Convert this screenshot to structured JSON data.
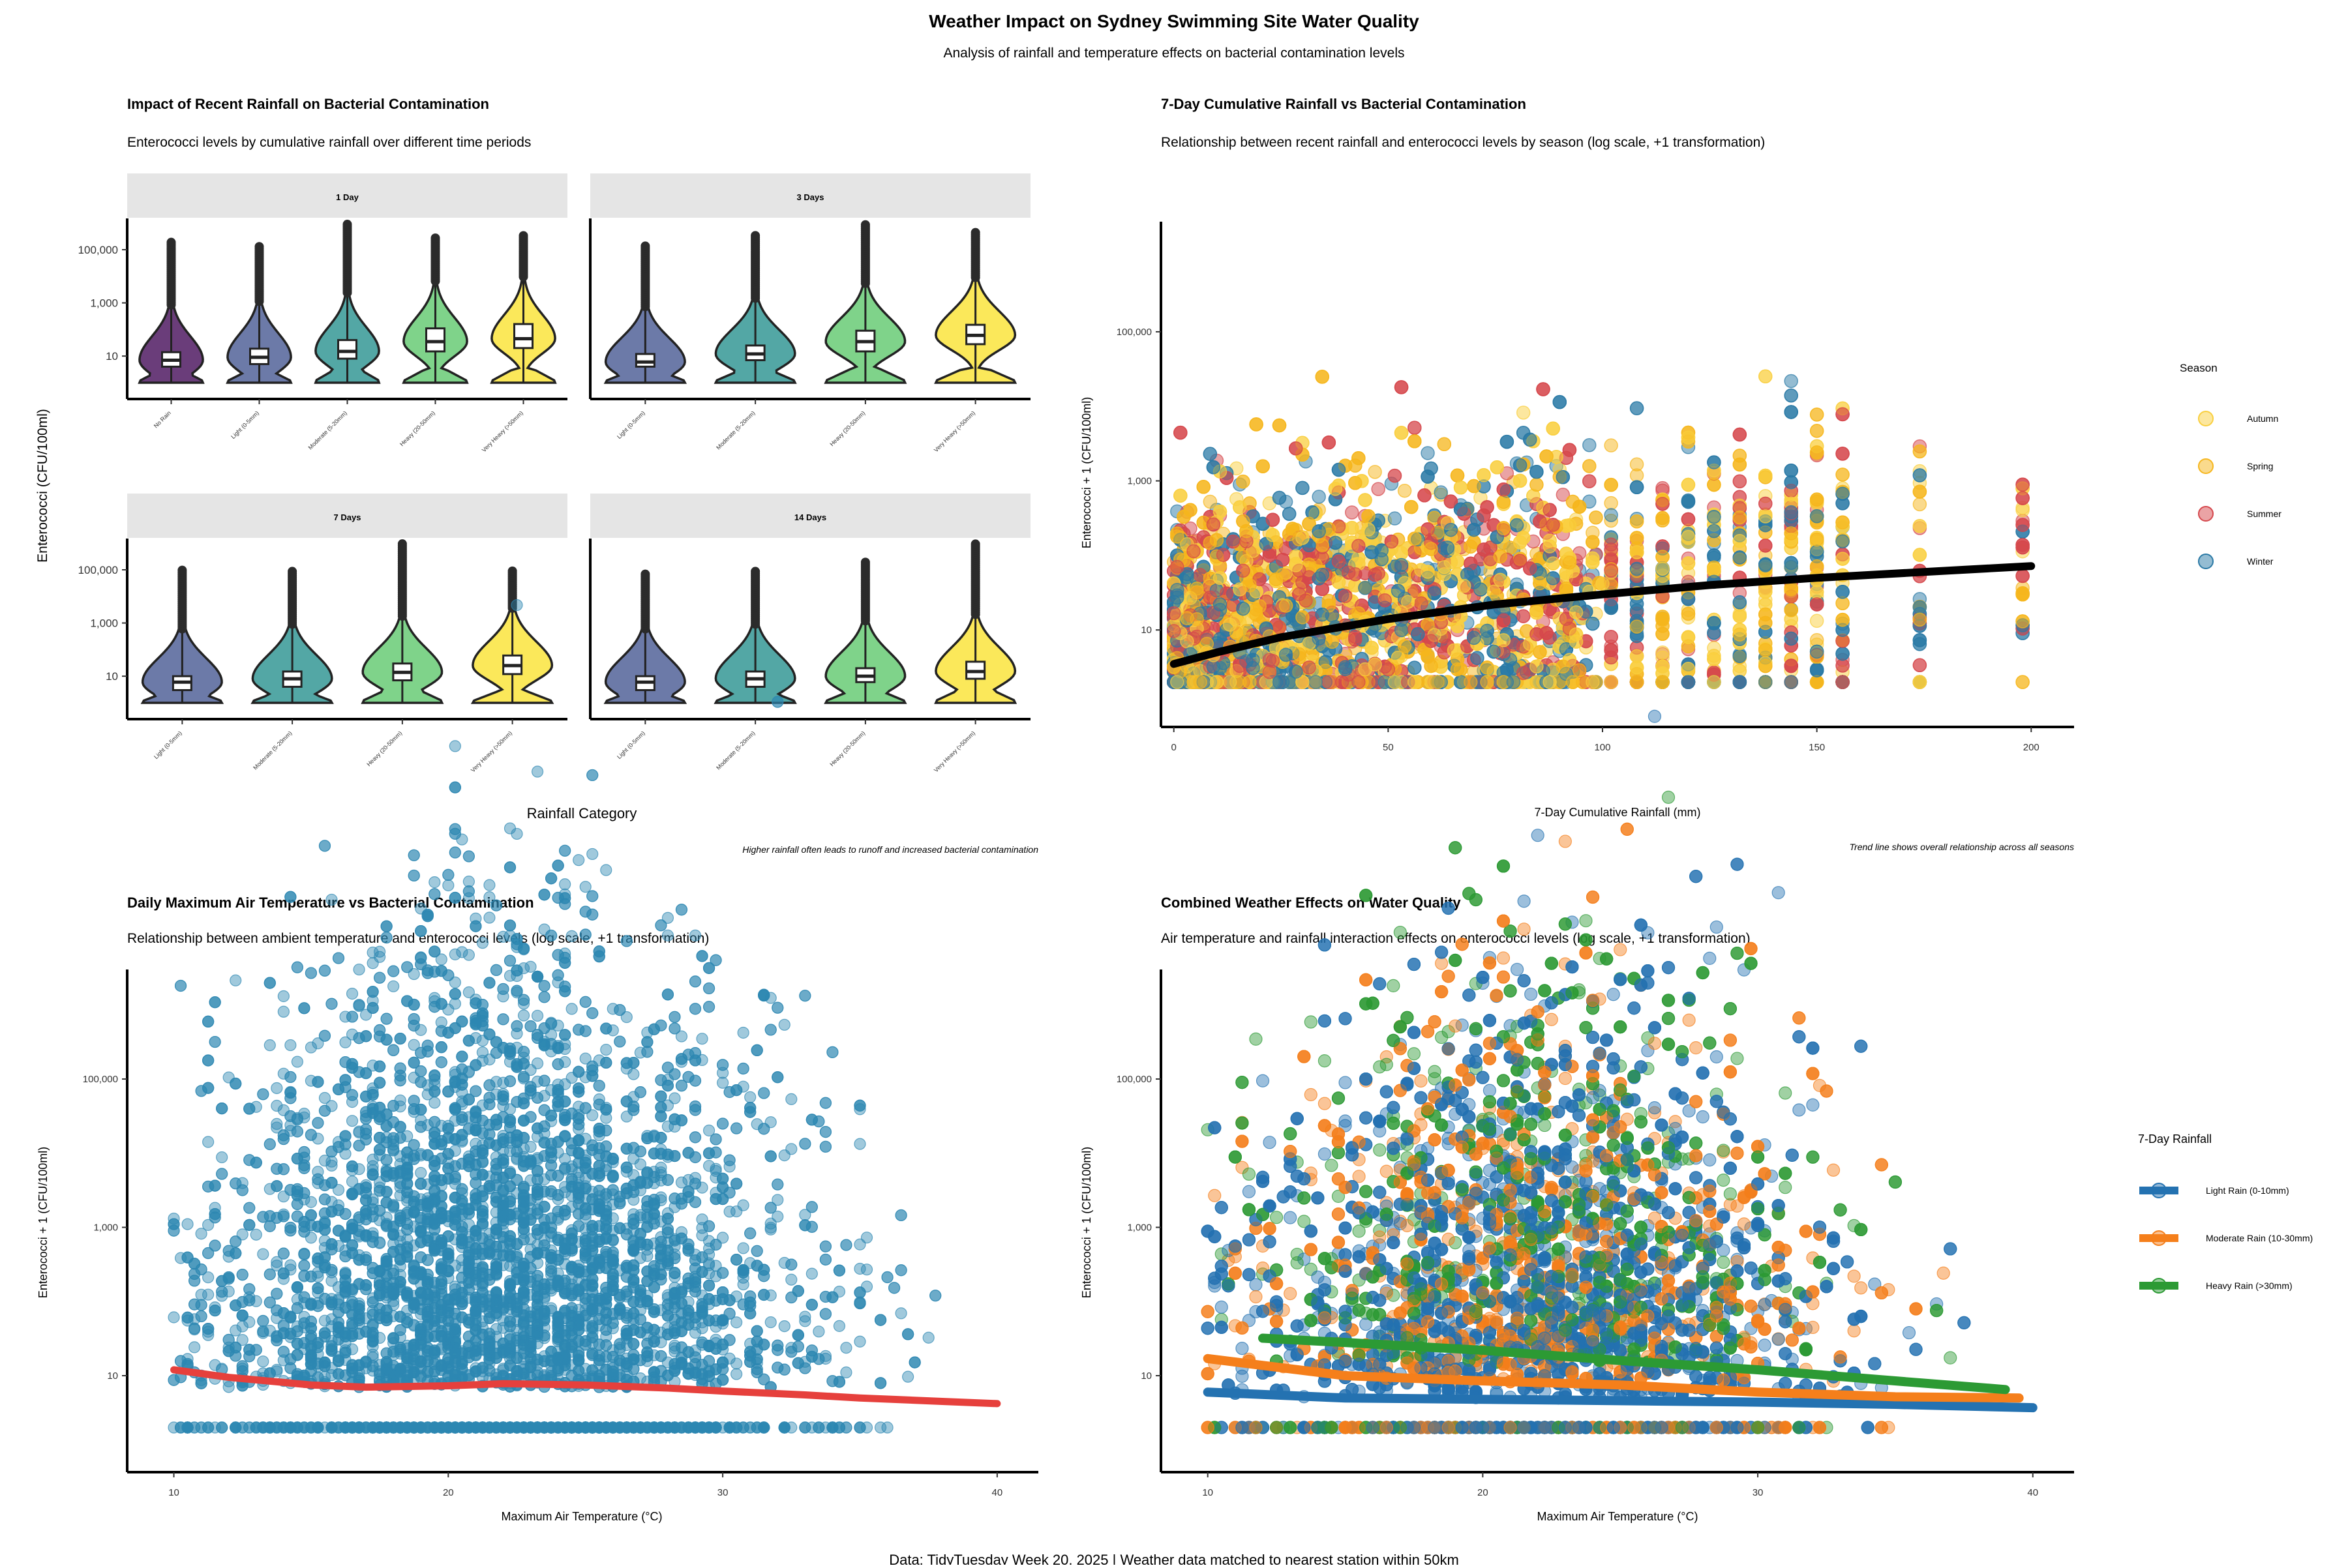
{
  "header": {
    "title": "Weather Impact on Sydney Swimming Site Water Quality",
    "subtitle": "Analysis of rainfall and temperature effects on bacterial contamination levels"
  },
  "caption": "Data: TidyTuesday Week 20, 2025 | Weather data matched to nearest station within 50km",
  "colors": {
    "viridis_5": [
      "#6a3d7a",
      "#6c7aa8",
      "#53a7a5",
      "#7fd38a",
      "#fbe85a"
    ],
    "viridis_4": [
      "#6c7aa8",
      "#53a7a5",
      "#7fd38a",
      "#fbe85a"
    ],
    "autumn": "#f9cf3f",
    "spring": "#f6b61c",
    "summer": "#d5474c",
    "winter": "#2a79a5",
    "temp_points": "#2d88b2",
    "temp_trend": "#e6403c",
    "light_rain": "#2472b1",
    "moderate_rain": "#f57f1b",
    "heavy_rain": "#2c9a34",
    "trend_black": "#000000",
    "strip_bg": "#e5e5e5"
  },
  "chart_data": [
    {
      "type": "violin",
      "title": "Impact of Recent Rainfall on Bacterial Contamination",
      "subtitle": "Enterococci levels by cumulative rainfall over different time periods",
      "xlabel": "Rainfall Category",
      "ylabel": "Enterococci (CFU/100ml)",
      "caption": "Higher rainfall often leads to runoff and increased bacterial contamination",
      "y_scale": "log10",
      "y_ticks": [
        "10",
        "1,000",
        "100,000"
      ],
      "facets": [
        {
          "label": "1 Day",
          "categories": [
            "No Rain",
            "Light (0-5mm)",
            "Moderate (5-20mm)",
            "Heavy (20-50mm)",
            "Very Heavy (>50mm)"
          ],
          "stats": [
            {
              "min": 1,
              "q1": 4,
              "median": 7,
              "q3": 14,
              "max": 200000
            },
            {
              "min": 1,
              "q1": 5,
              "median": 9,
              "q3": 19,
              "max": 150000
            },
            {
              "min": 1,
              "q1": 8,
              "median": 15,
              "q3": 40,
              "max": 1000000
            },
            {
              "min": 1,
              "q1": 15,
              "median": 35,
              "q3": 110,
              "max": 300000
            },
            {
              "min": 1,
              "q1": 20,
              "median": 45,
              "q3": 160,
              "max": 350000
            }
          ]
        },
        {
          "label": "3 Days",
          "categories": [
            "Light (0-5mm)",
            "Moderate (5-20mm)",
            "Heavy (20-50mm)",
            "Very Heavy (>50mm)"
          ],
          "stats": [
            {
              "min": 1,
              "q1": 4,
              "median": 6,
              "q3": 12,
              "max": 150000
            },
            {
              "min": 1,
              "q1": 7,
              "median": 12,
              "q3": 25,
              "max": 350000
            },
            {
              "min": 1,
              "q1": 15,
              "median": 35,
              "q3": 90,
              "max": 1000000
            },
            {
              "min": 1,
              "q1": 28,
              "median": 60,
              "q3": 150,
              "max": 450000
            }
          ]
        },
        {
          "label": "7 Days",
          "categories": [
            "Light (0-5mm)",
            "Moderate (5-20mm)",
            "Heavy (20-50mm)",
            "Very Heavy (>50mm)"
          ],
          "stats": [
            {
              "min": 1,
              "q1": 3,
              "median": 6,
              "q3": 10,
              "max": 100000
            },
            {
              "min": 1,
              "q1": 4,
              "median": 8,
              "q3": 15,
              "max": 90000
            },
            {
              "min": 1,
              "q1": 7,
              "median": 14,
              "q3": 30,
              "max": 1000000
            },
            {
              "min": 1,
              "q1": 12,
              "median": 25,
              "q3": 60,
              "max": 100000
            }
          ]
        },
        {
          "label": "14 Days",
          "categories": [
            "Light (0-5mm)",
            "Moderate (5-20mm)",
            "Heavy (20-50mm)",
            "Very Heavy (>50mm)"
          ],
          "stats": [
            {
              "min": 1,
              "q1": 3,
              "median": 6,
              "q3": 10,
              "max": 70000
            },
            {
              "min": 1,
              "q1": 4,
              "median": 8,
              "q3": 15,
              "max": 100000
            },
            {
              "min": 1,
              "q1": 6,
              "median": 10,
              "q3": 20,
              "max": 200000
            },
            {
              "min": 1,
              "q1": 8,
              "median": 15,
              "q3": 35,
              "max": 1000000
            }
          ]
        }
      ]
    },
    {
      "type": "scatter",
      "title": "7-Day Cumulative Rainfall vs Bacterial Contamination",
      "subtitle": "Relationship between recent rainfall and enterococci levels by season (log scale, +1 transformation)",
      "xlabel": "7-Day Cumulative Rainfall (mm)",
      "ylabel": "Enterococci + 1 (CFU/100ml)",
      "caption": "Trend line shows overall relationship across all seasons",
      "x_scale": "linear",
      "xlim": [
        -3,
        210
      ],
      "x_ticks": [
        0,
        50,
        100,
        150,
        200
      ],
      "y_scale": "log10",
      "ylim": [
        0.5,
        3000000
      ],
      "y_ticks": [
        "10",
        "1,000",
        "100,000"
      ],
      "legend": {
        "title": "Season",
        "position": "right",
        "entries": [
          "Autumn",
          "Spring",
          "Summer",
          "Winter"
        ]
      },
      "trend": {
        "x": [
          0,
          10,
          25,
          50,
          75,
          100,
          125,
          150,
          175,
          200
        ],
        "y": [
          3.5,
          5,
          8,
          14,
          22,
          30,
          40,
          50,
          60,
          72
        ]
      }
    },
    {
      "type": "scatter",
      "title": "Daily Maximum Air Temperature vs Bacterial Contamination",
      "subtitle": "Relationship between ambient temperature and enterococci levels (log scale, +1 transformation)",
      "xlabel": "Maximum Air Temperature (°C)",
      "ylabel": "Enterococci + 1 (CFU/100ml)",
      "x_scale": "linear",
      "xlim": [
        8.3,
        41.5
      ],
      "x_ticks": [
        10,
        20,
        30,
        40
      ],
      "y_scale": "log10",
      "ylim": [
        0.5,
        3000000
      ],
      "y_ticks": [
        "10",
        "1,000",
        "100,000"
      ],
      "trend": {
        "x": [
          10,
          12,
          15,
          17,
          20,
          22,
          25,
          28,
          30,
          33,
          35,
          38,
          40
        ],
        "y": [
          12,
          9.5,
          7.5,
          7,
          7.3,
          7.8,
          7.5,
          6.8,
          6.2,
          5.5,
          5,
          4.5,
          4.2
        ]
      }
    },
    {
      "type": "scatter",
      "title": "Combined Weather Effects on Water Quality",
      "subtitle": "Air temperature and rainfall interaction effects on enterococci levels (log scale, +1 transformation)",
      "xlabel": "Maximum Air Temperature (°C)",
      "ylabel": "Enterococci + 1 (CFU/100ml)",
      "x_scale": "linear",
      "xlim": [
        8.3,
        41.5
      ],
      "x_ticks": [
        10,
        20,
        30,
        40
      ],
      "y_scale": "log10",
      "ylim": [
        0.5,
        3000000
      ],
      "y_ticks": [
        "10",
        "1,000",
        "100,000"
      ],
      "legend": {
        "title": "7-Day Rainfall",
        "position": "right",
        "entries": [
          "Light Rain (0-10mm)",
          "Moderate Rain (10-30mm)",
          "Heavy Rain (>30mm)"
        ]
      },
      "series": [
        {
          "name": "Light Rain (0-10mm)",
          "trend": {
            "x": [
              10,
              15,
              20,
              25,
              30,
              35,
              40
            ],
            "y": [
              6,
              5,
              4.8,
              4.6,
              4.4,
              4.1,
              3.7
            ]
          }
        },
        {
          "name": "Moderate Rain (10-30mm)",
          "trend": {
            "x": [
              10,
              15,
              20,
              25,
              30,
              35,
              39.5
            ],
            "y": [
              17,
              10,
              8.5,
              7.5,
              6,
              5.2,
              5
            ]
          }
        },
        {
          "name": "Heavy Rain (>30mm)",
          "trend": {
            "x": [
              12,
              15,
              20,
              25,
              30,
              35,
              39
            ],
            "y": [
              32,
              28,
              22,
              16,
              12,
              8.5,
              6.5
            ]
          }
        }
      ]
    }
  ]
}
